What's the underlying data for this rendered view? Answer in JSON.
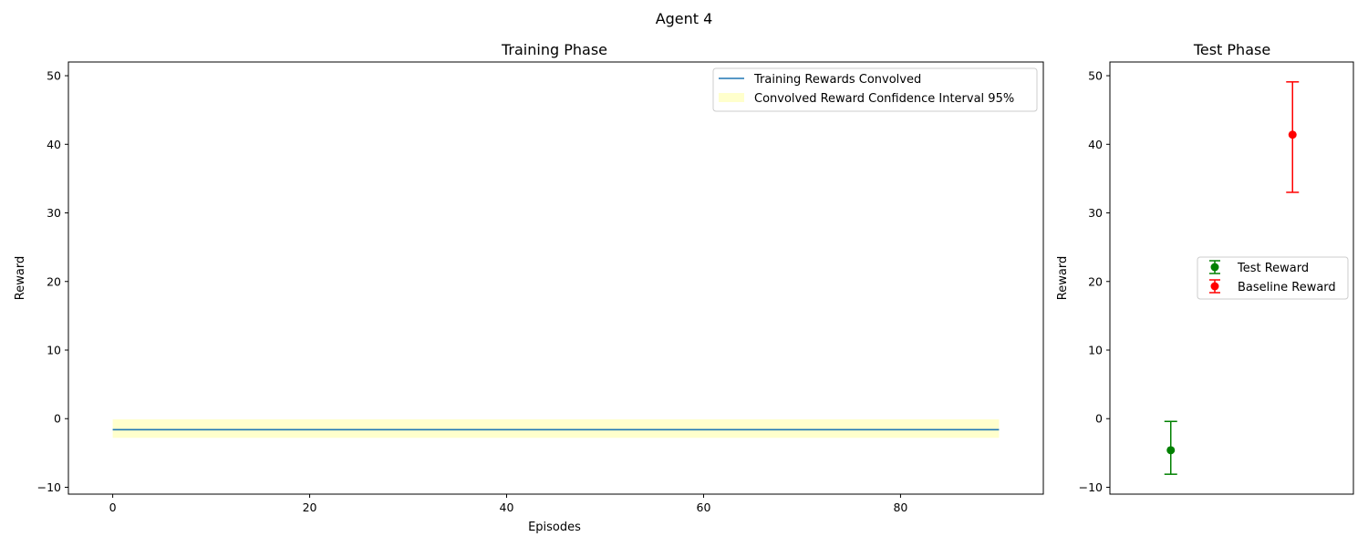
{
  "figure": {
    "suptitle": "Agent 4"
  },
  "chart_data": [
    {
      "type": "line",
      "title": "Training Phase",
      "xlabel": "Episodes",
      "ylabel": "Reward",
      "xlim": [
        -4.5,
        94.5
      ],
      "ylim": [
        -11,
        52
      ],
      "xticks": [
        0,
        20,
        40,
        60,
        80
      ],
      "yticks": [
        -10,
        0,
        10,
        20,
        30,
        40,
        50
      ],
      "series": [
        {
          "name": "Training Rewards Convolved",
          "color": "#1f77b4",
          "x": [
            0,
            90
          ],
          "y": [
            -1.6,
            -1.6
          ]
        }
      ],
      "bands": [
        {
          "name": "Convolved Reward Confidence Interval 95%",
          "color": "#ffffcc",
          "x": [
            0,
            90
          ],
          "lower": [
            -2.8,
            -2.8
          ],
          "upper": [
            -0.1,
            -0.1
          ]
        }
      ],
      "legend": "upper-right",
      "grid": false
    },
    {
      "type": "scatter",
      "title": "Test Phase",
      "ylabel": "Reward",
      "xlim": [
        -0.5,
        1.5
      ],
      "ylim": [
        -11,
        52
      ],
      "yticks": [
        -10,
        0,
        10,
        20,
        30,
        40,
        50
      ],
      "series": [
        {
          "name": "Test Reward",
          "color": "#008000",
          "x": [
            0
          ],
          "y": [
            -4.6
          ],
          "yerr_low": [
            -8.1
          ],
          "yerr_high": [
            -0.4
          ]
        },
        {
          "name": "Baseline Reward",
          "color": "#ff0000",
          "x": [
            1
          ],
          "y": [
            41.4
          ],
          "yerr_low": [
            33.0
          ],
          "yerr_high": [
            49.1
          ]
        }
      ],
      "legend": "center-right",
      "grid": false
    }
  ]
}
